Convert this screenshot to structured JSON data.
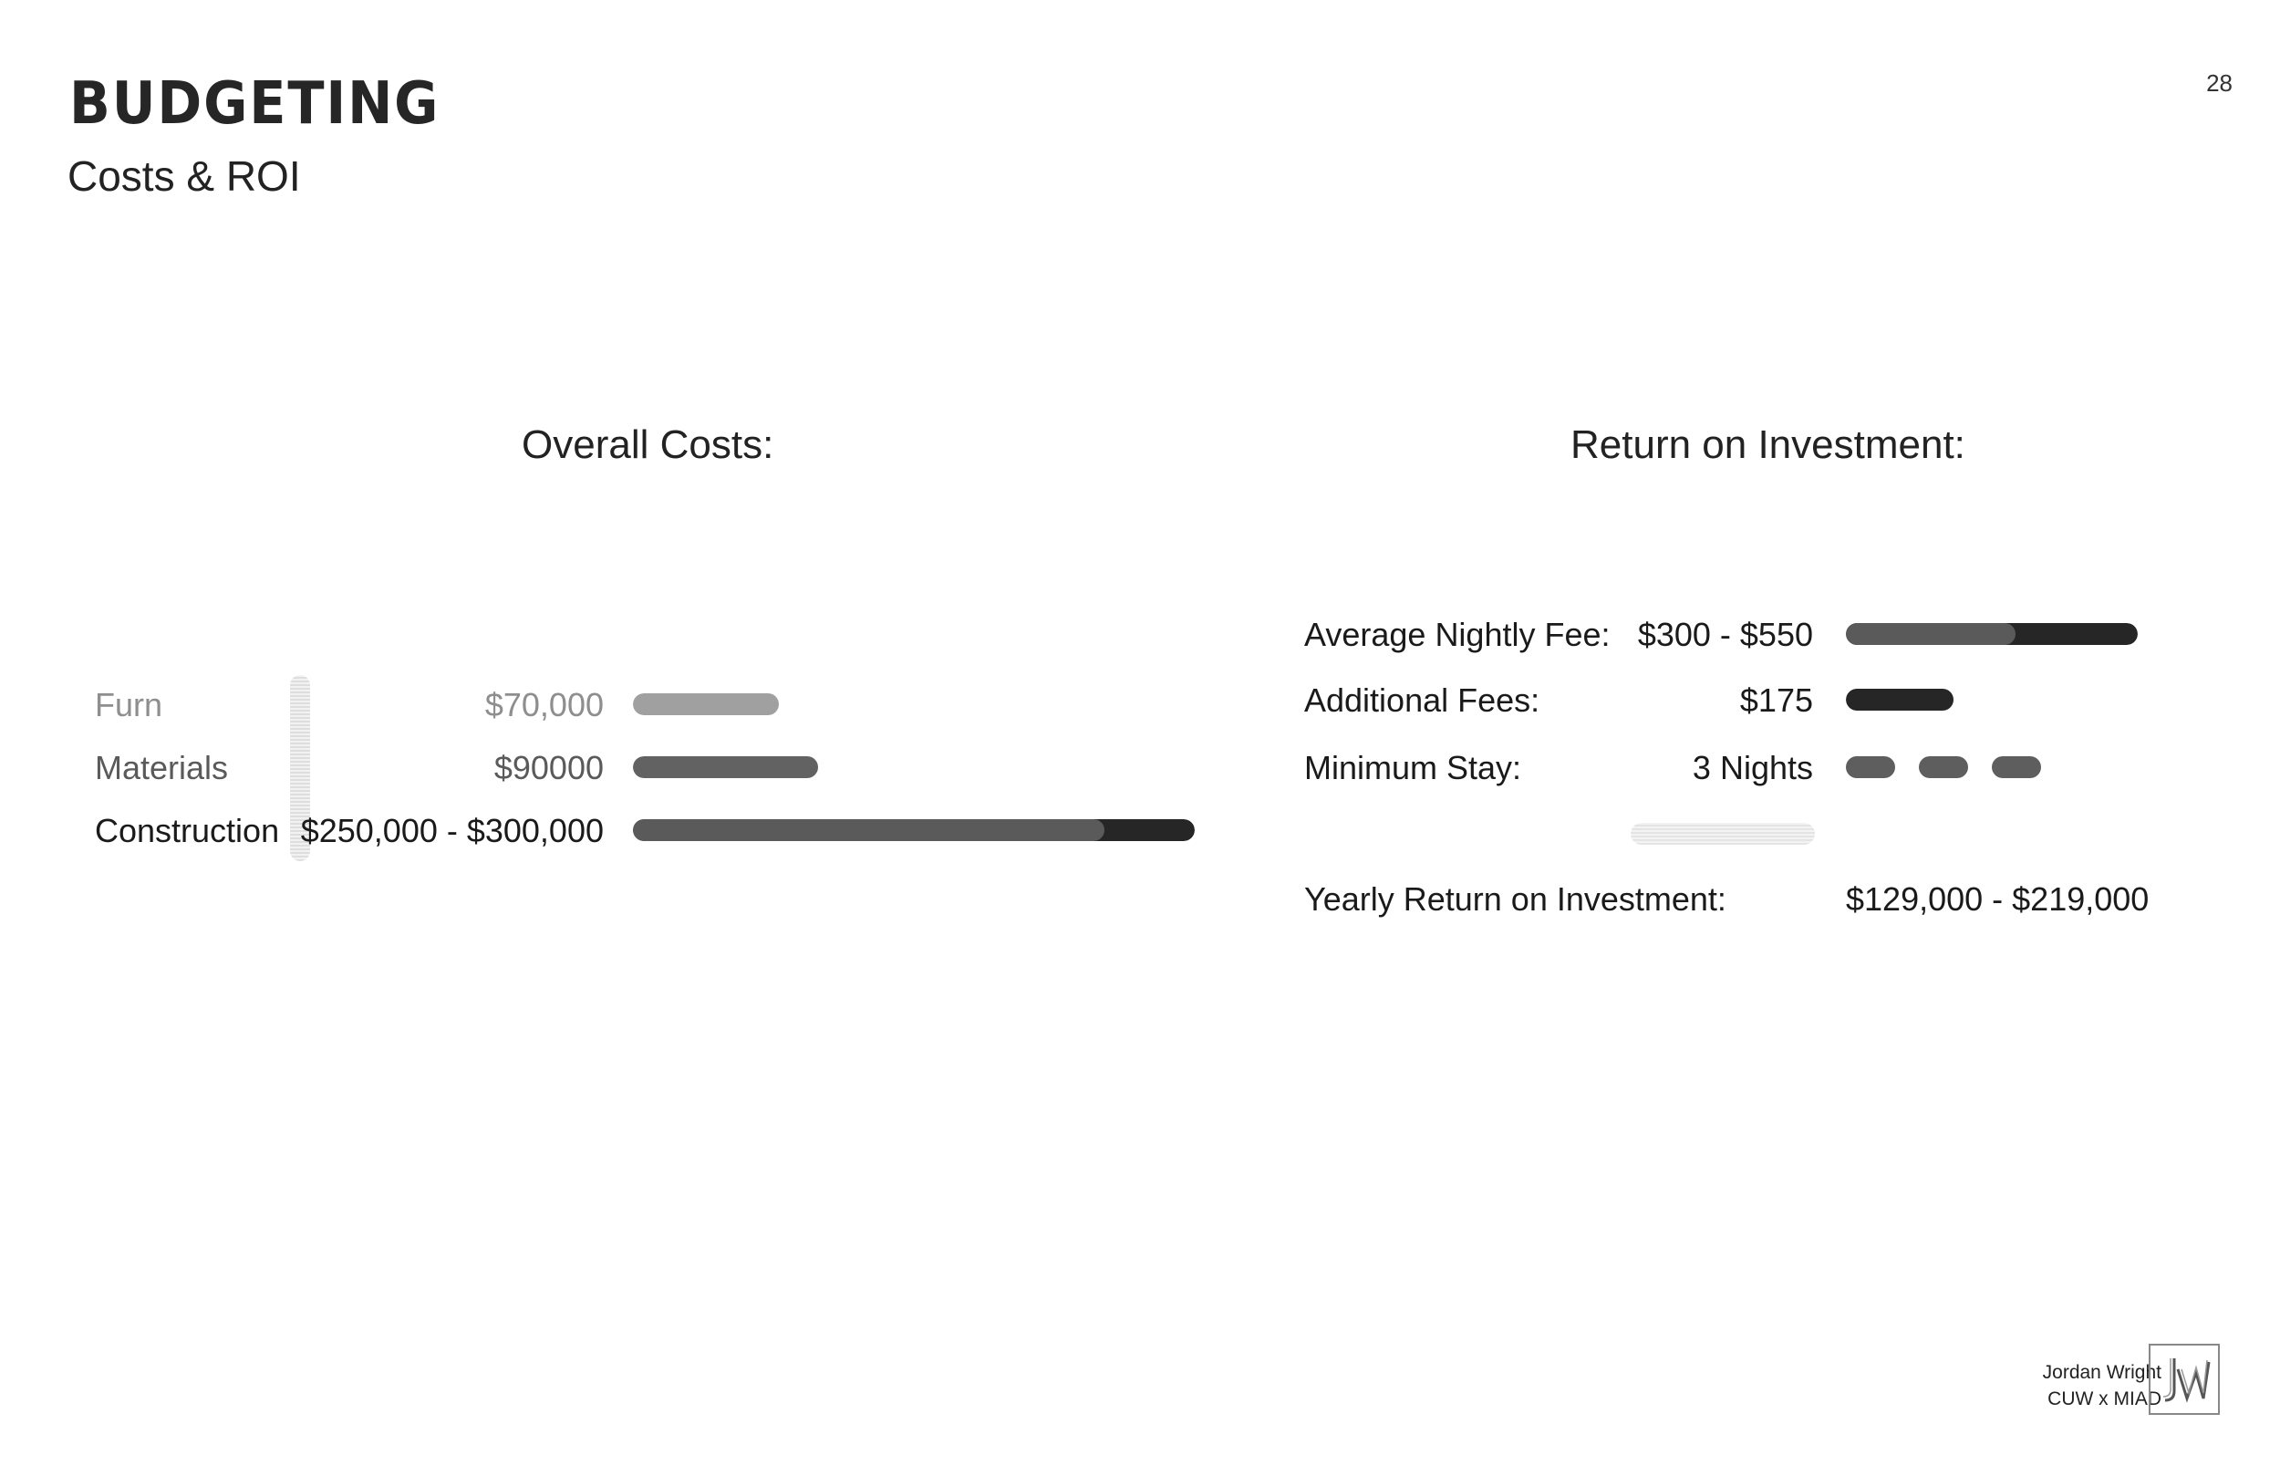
{
  "header": {
    "title": "BUDGETING",
    "subtitle": "Costs & ROI",
    "page_number": "28"
  },
  "costs": {
    "heading": "Overall Costs:",
    "rows": [
      {
        "label": "Furn",
        "value": "$70,000",
        "fill": 0.26,
        "color": "#a0a0a0"
      },
      {
        "label": "Materials",
        "value": "$90000",
        "fill": 0.33,
        "color": "#626262"
      },
      {
        "label": "Construction",
        "value": "$250,000 - $300,000",
        "fill_low": 0.84,
        "fill_high": 1.0,
        "color_low": "#5a5a5a",
        "color_high": "#262626"
      }
    ]
  },
  "roi": {
    "heading": "Return on Investment:",
    "rows": [
      {
        "label": "Average Nightly Fee:",
        "value": "$300 - $550",
        "fill_low": 0.58,
        "fill_high": 1.0,
        "color_low": "#5a5a5a",
        "color_high": "#262626"
      },
      {
        "label": "Additional Fees:",
        "value": "$175",
        "fill": 0.37,
        "color": "#262626"
      },
      {
        "label": "Minimum Stay:",
        "value": "3 Nights",
        "nights": 3,
        "color": "#5e5e5e"
      }
    ],
    "yearly": {
      "label": "Yearly Return on Investment:",
      "value": "$129,000 - $219,000"
    }
  },
  "footer": {
    "author": "Jordan Wright",
    "org": "CUW x MIAD"
  }
}
